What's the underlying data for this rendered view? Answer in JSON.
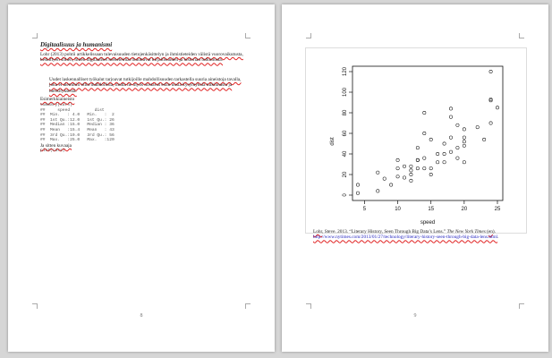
{
  "left_page": {
    "heading": "Digitaalisuus ja humanismi",
    "para1": "Lohr (2013) pohtii artikkelissaan tulevaisuuden tietojenkäsittelyn ja ihmistieteiden välistä vuorovaikutusta, keskittyen siihen, miten digitaaliset menetelmät muuttavat kirjallisuuden ja historian tutkimusta.",
    "quote": "Uudet laskennalliset työkalut tarjoavat tutkijoille mahdollisuuden tarkastella suuria aineistoja tavalla, joka ei aiemmin ollut mahdollista, mutta ne myös nostavat esiin uusia kysymyksiä tulkinnasta ja merkityksestä.",
    "code_label": "Esimerkkiaineisto",
    "code_block": "summary(cars)\n##     speed          dist\n##  Min.   : 4.0   Min.   :  2\n##  1st Qu.:12.0   1st Qu.: 26\n##  Median :15.0   Median : 36\n##  Mean   :15.4   Mean   : 43\n##  3rd Qu.:19.0   3rd Qu.: 56\n##  Max.   :25.0   Max.   :120",
    "plot_label": "Ja sitten kuvaaja",
    "plot_call": "plot(cars)",
    "page_number": "8"
  },
  "right_page": {
    "reference": {
      "author": "Lohr",
      "text": ", Steve. 2013. “Literary History, Seen Through Big Data’s Lens.” ",
      "journal": "The New York Times",
      "after": " (",
      "lang": "en",
      "after2": "). ",
      "url": "http://www.nytimes.com/2013/01/27/technology/literary-history-seen-through-big-data-lens.html",
      "end": "."
    },
    "page_number": "9"
  },
  "chart_data": {
    "type": "scatter",
    "title": "",
    "xlabel": "speed",
    "ylabel": "dist",
    "xlim": [
      4,
      25
    ],
    "ylim": [
      0,
      120
    ],
    "x_ticks": [
      "5",
      "10",
      "15",
      "20",
      "25"
    ],
    "y_ticks": [
      "0",
      "20",
      "40",
      "60",
      "80",
      "100",
      "120"
    ],
    "grid": false,
    "series": [
      {
        "x": [
          4,
          4,
          7,
          7,
          8,
          9,
          10,
          10,
          10,
          11,
          11,
          12,
          12,
          12,
          12,
          13,
          13,
          13,
          13,
          14,
          14,
          14,
          14,
          15,
          15,
          15,
          16,
          16,
          17,
          17,
          17,
          18,
          18,
          18,
          18,
          19,
          19,
          19,
          20,
          20,
          20,
          20,
          20,
          22,
          23,
          24,
          24,
          24,
          24,
          25
        ],
        "y": [
          2,
          10,
          4,
          22,
          16,
          10,
          18,
          26,
          34,
          17,
          28,
          14,
          20,
          24,
          28,
          26,
          34,
          34,
          46,
          26,
          36,
          60,
          80,
          20,
          26,
          54,
          32,
          40,
          32,
          40,
          50,
          42,
          56,
          76,
          84,
          36,
          46,
          68,
          32,
          48,
          52,
          56,
          64,
          66,
          54,
          70,
          92,
          93,
          120,
          85
        ]
      }
    ]
  }
}
